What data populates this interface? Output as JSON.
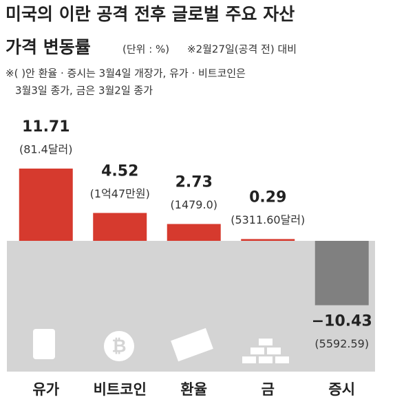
{
  "chart_data": {
    "type": "bar",
    "title": [
      "미국의 이란 공격 전후 글로벌 주요 자산",
      "가격 변동률"
    ],
    "unit": "(단위 : %)",
    "subtitle": "※2월27일(공격 전) 대비",
    "notes": [
      "※( )안 환율 · 증시는 3월4일 개장가, 유가 · 비트코인은",
      "3월3일 종가, 금은 3월2일 종가"
    ],
    "categories": [
      "유가",
      "비트코인",
      "환율",
      "금",
      "증시"
    ],
    "values": [
      11.71,
      4.52,
      2.73,
      0.29,
      -10.43
    ],
    "value_labels": [
      "11.71",
      "4.52",
      "2.73",
      "0.29",
      "−10.43"
    ],
    "price_labels": [
      "(81.4달러)",
      "(1억47만원)",
      "(1479.0)",
      "(5311.60달러)",
      "(5592.59)"
    ],
    "color": "#d63a2e",
    "negative_color": "#808080"
  }
}
